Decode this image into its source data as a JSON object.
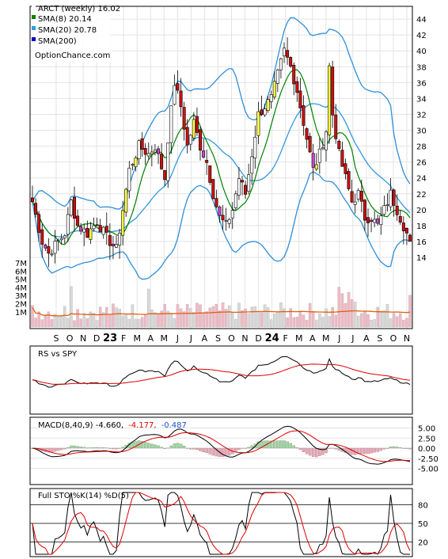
{
  "chart_data": [
    {
      "type": "candlestick",
      "panel": "price",
      "legend": [
        {
          "label": "ARCT (weekly) 16.02",
          "color": "#ffffff"
        },
        {
          "label": "SMA(8) 20.14",
          "color": "#008000"
        },
        {
          "label": "SMA(20) 20.78",
          "color": "#3399dd"
        },
        {
          "label": "SMA(200)",
          "color": "#0000cc"
        }
      ],
      "watermark": "OptionChance.com",
      "ylim": [
        12,
        46
      ],
      "yticks": [
        14,
        16,
        18,
        20,
        22,
        24,
        26,
        28,
        30,
        32,
        34,
        36,
        38,
        40,
        42,
        44
      ],
      "volume_ticks": [
        "7M",
        "6M",
        "5M",
        "4M",
        "3M",
        "2M",
        "1M"
      ],
      "x_labels": [
        "S",
        "O",
        "N",
        "D",
        "23",
        "F",
        "M",
        "A",
        "M",
        "J",
        "J",
        "A",
        "S",
        "O",
        "N",
        "D",
        "24",
        "F",
        "M",
        "A",
        "M",
        "J",
        "J",
        "A",
        "S",
        "O",
        "N"
      ],
      "close_keypoints": [
        [
          0,
          21
        ],
        [
          3,
          16
        ],
        [
          5,
          14.5
        ],
        [
          8,
          16
        ],
        [
          10,
          17
        ],
        [
          12,
          21
        ],
        [
          14,
          18
        ],
        [
          17,
          17
        ],
        [
          20,
          18.5
        ],
        [
          23,
          16.5
        ],
        [
          26,
          15
        ],
        [
          28,
          20
        ],
        [
          30,
          25
        ],
        [
          33,
          28
        ],
        [
          36,
          27
        ],
        [
          38,
          28
        ],
        [
          41,
          24
        ],
        [
          42,
          29
        ],
        [
          44,
          36
        ],
        [
          46,
          33
        ],
        [
          48,
          28
        ],
        [
          50,
          31
        ],
        [
          52,
          28
        ],
        [
          54,
          26
        ],
        [
          56,
          22
        ],
        [
          58,
          19
        ],
        [
          60,
          18
        ],
        [
          62,
          20
        ],
        [
          64,
          24
        ],
        [
          66,
          22
        ],
        [
          68,
          27
        ],
        [
          70,
          32
        ],
        [
          72,
          33
        ],
        [
          74,
          34
        ],
        [
          76,
          37
        ],
        [
          78,
          40
        ],
        [
          80,
          38
        ],
        [
          82,
          35
        ],
        [
          84,
          31
        ],
        [
          86,
          27
        ],
        [
          87,
          25
        ],
        [
          89,
          27
        ],
        [
          91,
          30
        ],
        [
          92,
          38
        ],
        [
          93,
          32
        ],
        [
          95,
          27
        ],
        [
          97,
          24
        ],
        [
          99,
          21
        ],
        [
          101,
          22
        ],
        [
          103,
          19
        ],
        [
          105,
          19
        ],
        [
          107,
          18
        ],
        [
          109,
          20
        ],
        [
          111,
          22
        ],
        [
          113,
          20
        ],
        [
          115,
          18
        ],
        [
          117,
          16
        ]
      ],
      "n_weeks": 118,
      "last_close": 16.02
    },
    {
      "type": "line",
      "panel": "relative-strength",
      "title": "RS vs SPY"
    },
    {
      "type": "histogram+line",
      "panel": "macd",
      "title_parts": [
        "MACD(8,40,9) -4.660,",
        "-4.177,",
        "-0.487"
      ],
      "title_colors": [
        "#000000",
        "#dd0000",
        "#1f4fcc"
      ],
      "yticks": [
        5.0,
        2.5,
        0.0,
        -2.5,
        -5.0
      ],
      "ytick_labels": [
        "5.00",
        "2.50",
        "0.00",
        "-2.50",
        "-5.00"
      ],
      "ylim": [
        -7,
        7
      ],
      "macd": -4.66,
      "signal": -4.177,
      "histogram": -0.487
    },
    {
      "type": "line",
      "panel": "stochastic",
      "title": "Full STO %K(14) %D(5)",
      "yticks": [
        20,
        50,
        80
      ],
      "ylim": [
        0,
        100
      ]
    }
  ]
}
